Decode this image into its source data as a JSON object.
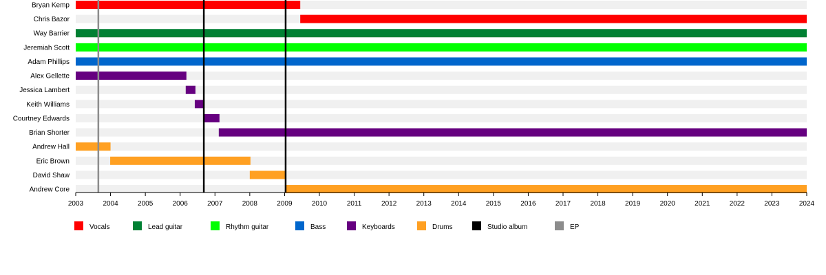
{
  "chart_data": {
    "type": "timeline",
    "title": "",
    "xlim": [
      2003,
      2024
    ],
    "x_ticks": [
      2003,
      2004,
      2005,
      2006,
      2007,
      2008,
      2009,
      2010,
      2011,
      2012,
      2013,
      2014,
      2015,
      2016,
      2017,
      2018,
      2019,
      2020,
      2021,
      2022,
      2023,
      2024
    ],
    "members": [
      {
        "name": "Bryan Kemp",
        "bars": [
          {
            "role": "Vocals",
            "start": 2003.0,
            "end": 2009.45
          }
        ]
      },
      {
        "name": "Chris Bazor",
        "bars": [
          {
            "role": "Vocals",
            "start": 2009.45,
            "end": 2024.0
          }
        ]
      },
      {
        "name": "Way Barrier",
        "bars": [
          {
            "role": "Lead guitar",
            "start": 2003.0,
            "end": 2024.0
          }
        ]
      },
      {
        "name": "Jeremiah Scott",
        "bars": [
          {
            "role": "Rhythm guitar",
            "start": 2003.0,
            "end": 2024.0
          }
        ]
      },
      {
        "name": "Adam Phillips",
        "bars": [
          {
            "role": "Bass",
            "start": 2003.0,
            "end": 2024.0
          }
        ]
      },
      {
        "name": "Alex Gellette",
        "bars": [
          {
            "role": "Keyboards",
            "start": 2003.0,
            "end": 2006.18
          }
        ]
      },
      {
        "name": "Jessica Lambert",
        "bars": [
          {
            "role": "Keyboards",
            "start": 2006.16,
            "end": 2006.44
          }
        ]
      },
      {
        "name": "Keith Williams",
        "bars": [
          {
            "role": "Keyboards",
            "start": 2006.42,
            "end": 2006.7
          }
        ]
      },
      {
        "name": "Courtney Edwards",
        "bars": [
          {
            "role": "Keyboards",
            "start": 2006.68,
            "end": 2007.13
          }
        ]
      },
      {
        "name": "Brian Shorter",
        "bars": [
          {
            "role": "Keyboards",
            "start": 2007.11,
            "end": 2024.0
          }
        ]
      },
      {
        "name": "Andrew Hall",
        "bars": [
          {
            "role": "Drums",
            "start": 2003.0,
            "end": 2004.0
          }
        ]
      },
      {
        "name": "Eric Brown",
        "bars": [
          {
            "role": "Drums",
            "start": 2003.99,
            "end": 2008.02
          }
        ]
      },
      {
        "name": "David Shaw",
        "bars": [
          {
            "role": "Drums",
            "start": 2008.0,
            "end": 2009.03
          }
        ]
      },
      {
        "name": "Andrew Core",
        "bars": [
          {
            "role": "Drums",
            "start": 2009.01,
            "end": 2024.0
          }
        ]
      }
    ],
    "events": [
      {
        "type": "Studio album",
        "x": 2006.68
      },
      {
        "type": "Studio album",
        "x": 2009.03
      },
      {
        "type": "EP",
        "x": 2003.65
      }
    ],
    "legend": [
      {
        "label": "Vocals",
        "color": "#ff0000"
      },
      {
        "label": "Lead guitar",
        "color": "#008033"
      },
      {
        "label": "Rhythm guitar",
        "color": "#00ff00"
      },
      {
        "label": "Bass",
        "color": "#0066cc"
      },
      {
        "label": "Keyboards",
        "color": "#660080"
      },
      {
        "label": "Drums",
        "color": "#ffa022"
      },
      {
        "label": "Studio album",
        "color": "#000000"
      },
      {
        "label": "EP",
        "color": "#8c8c8c"
      }
    ],
    "legend_placement": "bottom"
  }
}
